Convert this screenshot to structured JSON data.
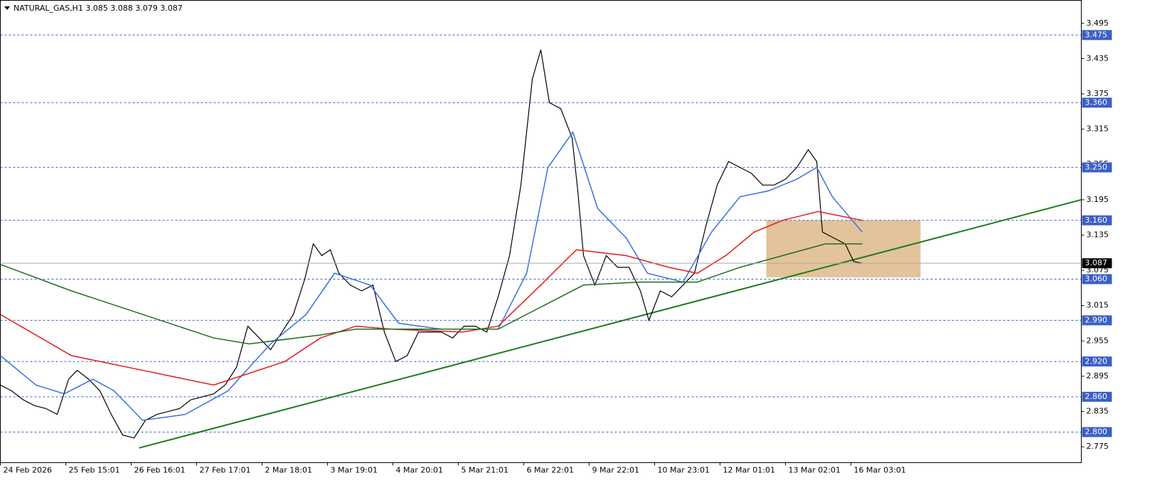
{
  "chart_data": {
    "type": "line",
    "title": "NATURAL_GAS,H1  3.085 3.088 3.079 3.087",
    "ylim": [
      2.748,
      3.534
    ],
    "yticks": [
      3.495,
      3.435,
      3.375,
      3.315,
      3.255,
      3.195,
      3.135,
      3.075,
      3.015,
      2.955,
      2.895,
      2.835,
      2.775
    ],
    "xlim": [
      0,
      380
    ],
    "xticks": [
      {
        "value": 0,
        "label": "24 Feb 2026"
      },
      {
        "value": 23,
        "label": "25 Feb 15:01"
      },
      {
        "value": 46,
        "label": "26 Feb 16:01"
      },
      {
        "value": 69,
        "label": "27 Feb 17:01"
      },
      {
        "value": 92,
        "label": "2 Mar 18:01"
      },
      {
        "value": 115,
        "label": "3 Mar 19:01"
      },
      {
        "value": 138,
        "label": "4 Mar 20:01"
      },
      {
        "value": 161,
        "label": "5 Mar 21:01"
      },
      {
        "value": 184,
        "label": "6 Mar 22:01"
      },
      {
        "value": 207,
        "label": "9 Mar 22:01"
      },
      {
        "value": 230,
        "label": "10 Mar 23:01"
      },
      {
        "value": 253,
        "label": "12 Mar 01:01"
      },
      {
        "value": 276,
        "label": "13 Mar 02:01"
      },
      {
        "value": 299,
        "label": "16 Mar 03:01"
      }
    ],
    "levels": [
      {
        "value": 3.475,
        "label": "3.475"
      },
      {
        "value": 3.36,
        "label": "3.360"
      },
      {
        "value": 3.25,
        "label": "3.250"
      },
      {
        "value": 3.16,
        "label": "3.160"
      },
      {
        "value": 3.06,
        "label": "3.060"
      },
      {
        "value": 2.99,
        "label": "2.990"
      },
      {
        "value": 2.92,
        "label": "2.920"
      },
      {
        "value": 2.86,
        "label": "2.860"
      },
      {
        "value": 2.8,
        "label": "2.800"
      }
    ],
    "level_color": "#3c5fc8",
    "current_price": 3.087,
    "zone": {
      "color": "#deb887",
      "x": [
        269.25,
        323.5
      ],
      "values": [
        3.063,
        3.16
      ]
    },
    "trendline": {
      "color": "#1e7a1e",
      "x": [
        48.75,
        380
      ],
      "values": [
        2.773,
        3.195
      ]
    },
    "series": [
      {
        "color": "#000000",
        "x": [
          0,
          4,
          8,
          12,
          16,
          20,
          24,
          27,
          31,
          35,
          39,
          43,
          47,
          51,
          55,
          59,
          63,
          67,
          71,
          75,
          79,
          83,
          87,
          91,
          95,
          99,
          103,
          107,
          110,
          113,
          116,
          119,
          123,
          127,
          131,
          135,
          139,
          143,
          147,
          151,
          155,
          159,
          163,
          167,
          171,
          175,
          179,
          183,
          187,
          190,
          193,
          197,
          201,
          203,
          205,
          209,
          213,
          217,
          221,
          225,
          228,
          232,
          236,
          240,
          244,
          248,
          252,
          256,
          260,
          264,
          268,
          272,
          276,
          280,
          284,
          287,
          289,
          293,
          297,
          300,
          303
        ],
        "values": [
          2.88,
          2.87,
          2.855,
          2.845,
          2.84,
          2.83,
          2.89,
          2.905,
          2.89,
          2.87,
          2.83,
          2.795,
          2.79,
          2.82,
          2.83,
          2.835,
          2.84,
          2.855,
          2.86,
          2.865,
          2.88,
          2.91,
          2.98,
          2.96,
          2.94,
          2.97,
          3.0,
          3.06,
          3.12,
          3.1,
          3.11,
          3.07,
          3.05,
          3.04,
          3.05,
          2.97,
          2.92,
          2.93,
          2.97,
          2.97,
          2.97,
          2.96,
          2.98,
          2.98,
          2.97,
          3.03,
          3.1,
          3.22,
          3.4,
          3.45,
          3.36,
          3.35,
          3.3,
          3.21,
          3.1,
          3.05,
          3.1,
          3.08,
          3.08,
          3.04,
          2.99,
          3.04,
          3.03,
          3.05,
          3.07,
          3.15,
          3.22,
          3.26,
          3.25,
          3.24,
          3.22,
          3.22,
          3.23,
          3.25,
          3.28,
          3.26,
          3.14,
          3.13,
          3.12,
          3.09,
          3.087
        ]
      },
      {
        "color": "#3a6fe0",
        "x": [
          0,
          12.5,
          22.5,
          32.5,
          40,
          50,
          65,
          80,
          95,
          107.5,
          117.5,
          130,
          140,
          155,
          175,
          185,
          192.5,
          201.25,
          210,
          220,
          227.5,
          240,
          250,
          260,
          270,
          280,
          287,
          292.5,
          303
        ],
        "values": [
          2.93,
          2.88,
          2.865,
          2.89,
          2.87,
          2.82,
          2.83,
          2.87,
          2.95,
          3.0,
          3.07,
          3.05,
          2.985,
          2.975,
          2.975,
          3.07,
          3.25,
          3.31,
          3.18,
          3.13,
          3.07,
          3.055,
          3.14,
          3.2,
          3.21,
          3.23,
          3.25,
          3.2,
          3.14
        ]
      },
      {
        "color": "#e31a1a",
        "x": [
          0,
          25,
          50,
          75,
          100,
          112.5,
          125,
          137.5,
          162.5,
          175,
          190,
          202.5,
          220,
          235,
          245,
          255,
          265,
          275,
          287.5,
          303
        ],
        "values": [
          3.0,
          2.93,
          2.905,
          2.88,
          2.92,
          2.96,
          2.98,
          2.975,
          2.97,
          2.98,
          3.05,
          3.11,
          3.1,
          3.08,
          3.07,
          3.1,
          3.14,
          3.16,
          3.175,
          3.16
        ]
      },
      {
        "color": "#1e6e1e",
        "x": [
          0,
          25,
          50,
          75,
          87.5,
          112.5,
          125,
          150,
          175,
          195,
          205,
          225,
          245,
          260,
          275,
          290,
          303
        ],
        "values": [
          3.085,
          3.04,
          3.0,
          2.96,
          2.95,
          2.965,
          2.975,
          2.975,
          2.975,
          3.025,
          3.05,
          3.055,
          3.055,
          3.08,
          3.1,
          3.12,
          3.12
        ]
      }
    ]
  }
}
